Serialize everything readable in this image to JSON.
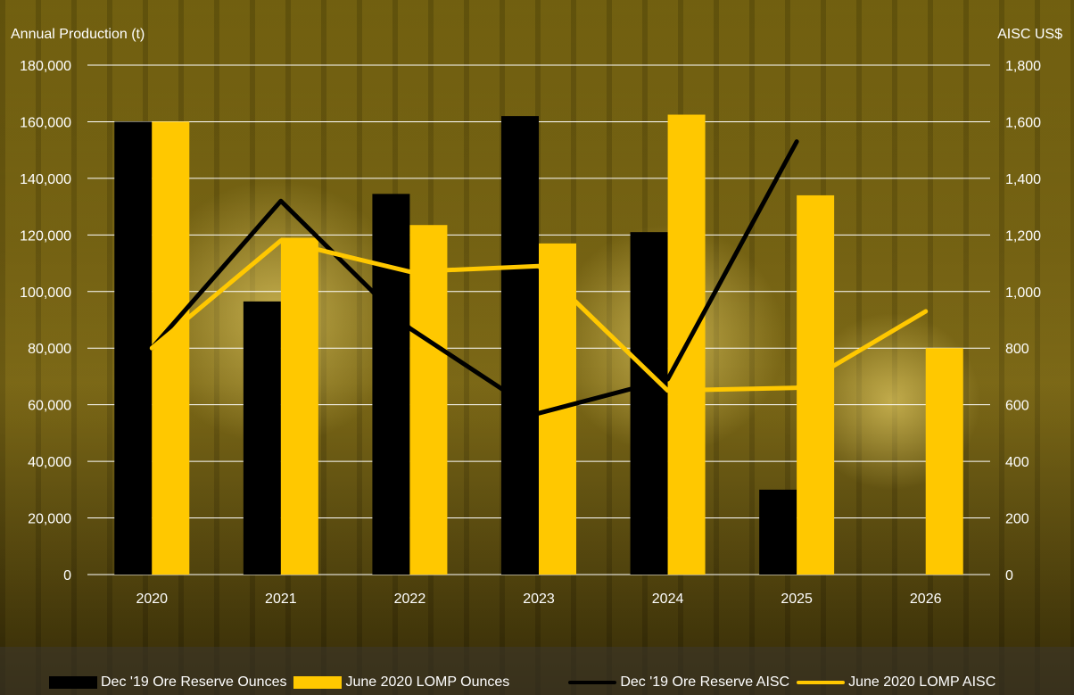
{
  "chart_data": {
    "type": "bar",
    "categories": [
      "2020",
      "2021",
      "2022",
      "2023",
      "2024",
      "2025",
      "2026"
    ],
    "y_left": {
      "label": "Annual Production (t)",
      "ylim": [
        0,
        180000
      ],
      "ticks": [
        "0",
        "20,000",
        "40,000",
        "60,000",
        "80,000",
        "100,000",
        "120,000",
        "140,000",
        "160,000",
        "180,000"
      ]
    },
    "y_right": {
      "label": "AISC US$",
      "ylim": [
        0,
        1800
      ],
      "ticks": [
        "0",
        "200",
        "400",
        "600",
        "800",
        "1,000",
        "1,200",
        "1,400",
        "1,600",
        "1,800"
      ]
    },
    "bar_series": [
      {
        "name": "Dec '19 Ore Reserve Ounces",
        "color": "#000000",
        "values": [
          160000,
          96500,
          134500,
          162000,
          121000,
          30000,
          null
        ]
      },
      {
        "name": "June 2020 LOMP Ounces",
        "color": "#ffc800",
        "values": [
          160000,
          119000,
          123500,
          117000,
          162500,
          134000,
          80000
        ]
      }
    ],
    "line_series": [
      {
        "name": "Dec '19 Ore Reserve AISC",
        "color": "#000000",
        "axis": "right",
        "values": [
          800,
          1320,
          870,
          570,
          690,
          1530,
          null
        ]
      },
      {
        "name": "June 2020 LOMP AISC",
        "color": "#ffc800",
        "axis": "right",
        "values": [
          800,
          1180,
          1070,
          1090,
          650,
          660,
          930
        ]
      }
    ],
    "grid": true,
    "legend_position": "bottom"
  }
}
